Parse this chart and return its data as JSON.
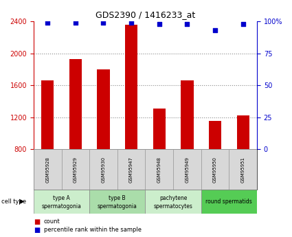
{
  "title": "GDS2390 / 1416233_at",
  "samples": [
    "GSM95928",
    "GSM95929",
    "GSM95930",
    "GSM95947",
    "GSM95948",
    "GSM95949",
    "GSM95950",
    "GSM95951"
  ],
  "counts": [
    1660,
    1930,
    1800,
    2360,
    1310,
    1660,
    1155,
    1220
  ],
  "percentile_ranks": [
    99,
    99,
    99,
    99,
    98,
    98,
    93,
    98
  ],
  "ylim_left": [
    800,
    2400
  ],
  "ylim_right": [
    0,
    100
  ],
  "yticks_left": [
    800,
    1200,
    1600,
    2000,
    2400
  ],
  "yticks_right": [
    0,
    25,
    50,
    75,
    100
  ],
  "bar_color": "#cc0000",
  "dot_color": "#0000cc",
  "bar_width": 0.45,
  "cell_type_groups": [
    {
      "label": "type A\nspermatogonia",
      "start": 0,
      "end": 2,
      "color": "#cceecc"
    },
    {
      "label": "type B\nspermatogonia",
      "start": 2,
      "end": 4,
      "color": "#aaddaa"
    },
    {
      "label": "pachytene\nspermatocytes",
      "start": 4,
      "end": 6,
      "color": "#cceecc"
    },
    {
      "label": "round spermatids",
      "start": 6,
      "end": 8,
      "color": "#55cc55"
    }
  ],
  "sample_box_color": "#d8d8d8",
  "left_axis_color": "#cc0000",
  "right_axis_color": "#0000cc",
  "grid_color": "#888888"
}
